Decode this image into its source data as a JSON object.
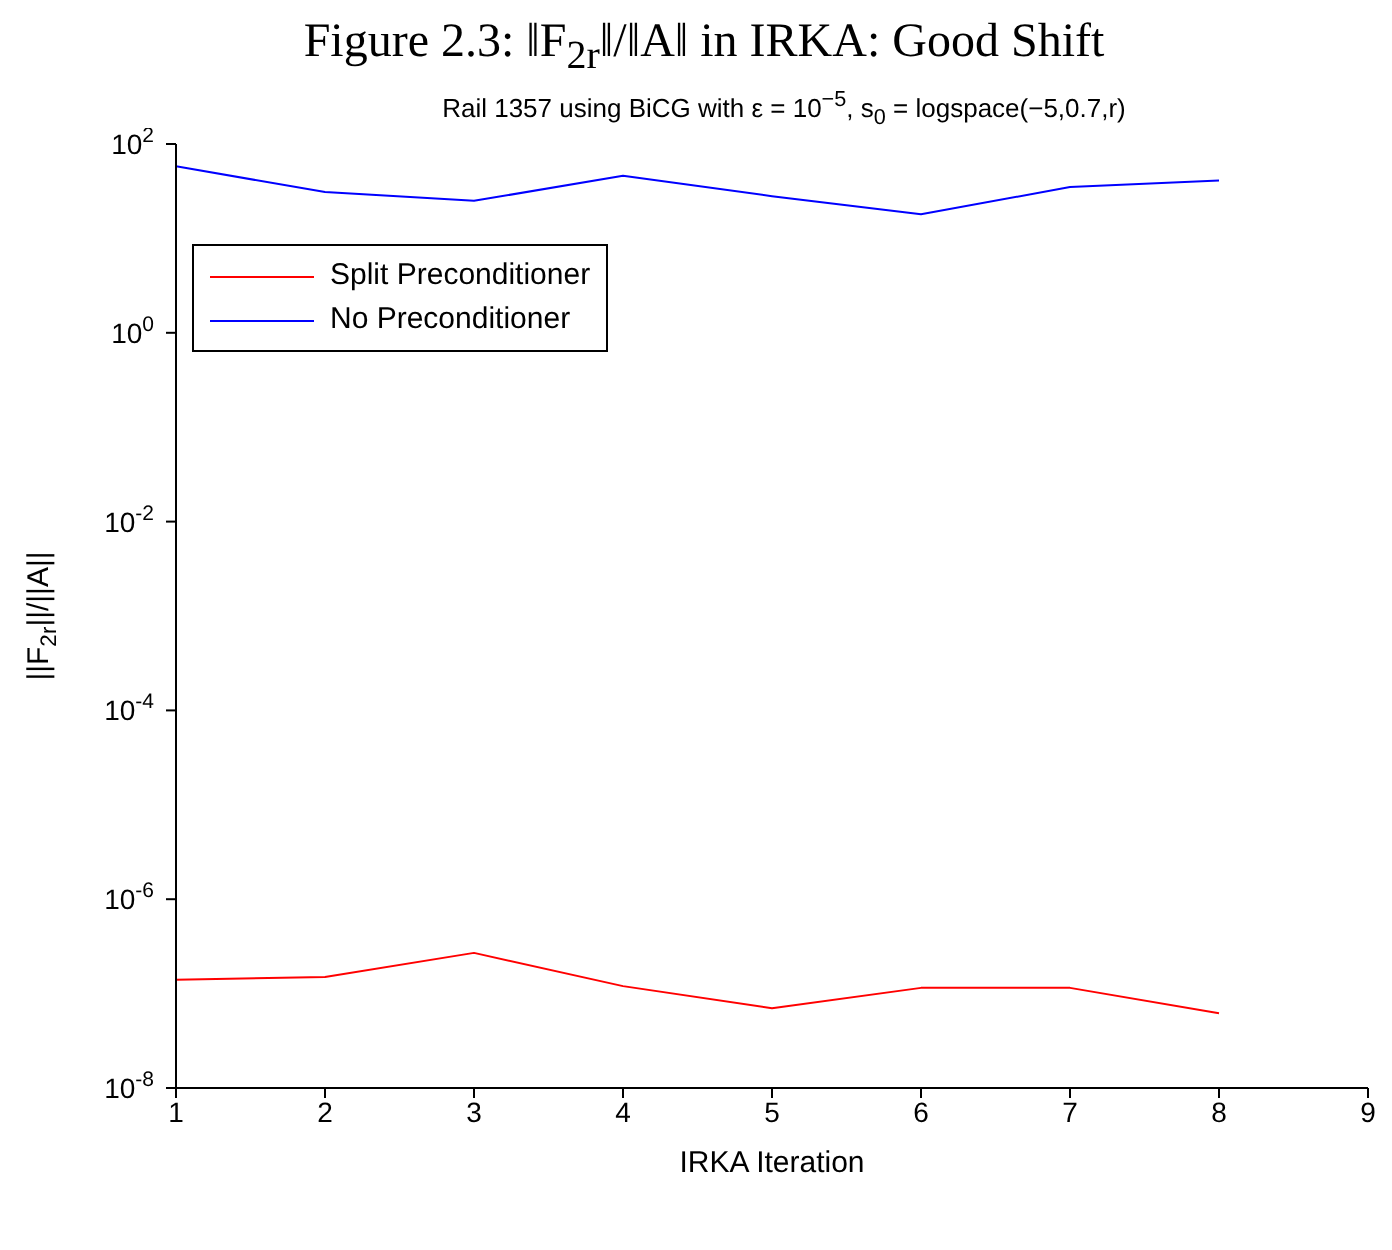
{
  "chart_data": {
    "type": "line",
    "title": "Figure 2.3: ‖F$_{2r}$‖/‖A‖ in IRKA: Good Shift",
    "subtitle": "Rail 1357 using BiCG with ε = 10$^{−5}$, s$_{0}$ = logspace(−5,0.7,r)",
    "xlabel": "IRKA Iteration",
    "ylabel": "||F$_{2r}$||/||A||",
    "x": [
      1,
      2,
      3,
      4,
      5,
      6,
      7,
      8
    ],
    "series": [
      {
        "name": "Split Preconditioner",
        "color": "#ff0000",
        "values": [
          1.4e-07,
          1.5e-07,
          2.7e-07,
          1.2e-07,
          7e-08,
          1.15e-07,
          1.15e-07,
          6.2e-08
        ]
      },
      {
        "name": "No Preconditioner",
        "color": "#0000ff",
        "values": [
          58,
          31,
          25,
          46,
          28,
          18,
          35,
          41
        ]
      }
    ],
    "log": "y",
    "xlim": [
      1,
      9
    ],
    "xticks": [
      1,
      2,
      3,
      4,
      5,
      6,
      7,
      8,
      9
    ],
    "ylim": [
      1e-08,
      100
    ],
    "yticks": [
      {
        "value": 1e-08,
        "label": "10$^{-8}$"
      },
      {
        "value": 1e-06,
        "label": "10$^{-6}$"
      },
      {
        "value": 0.0001,
        "label": "10$^{-4}$"
      },
      {
        "value": 0.01,
        "label": "10$^{-2}$"
      },
      {
        "value": 1,
        "label": "10$^{0}$"
      },
      {
        "value": 100,
        "label": "10$^{2}$"
      }
    ],
    "grid": false,
    "legend": "top left",
    "marker": "none",
    "line_style": "solid"
  }
}
